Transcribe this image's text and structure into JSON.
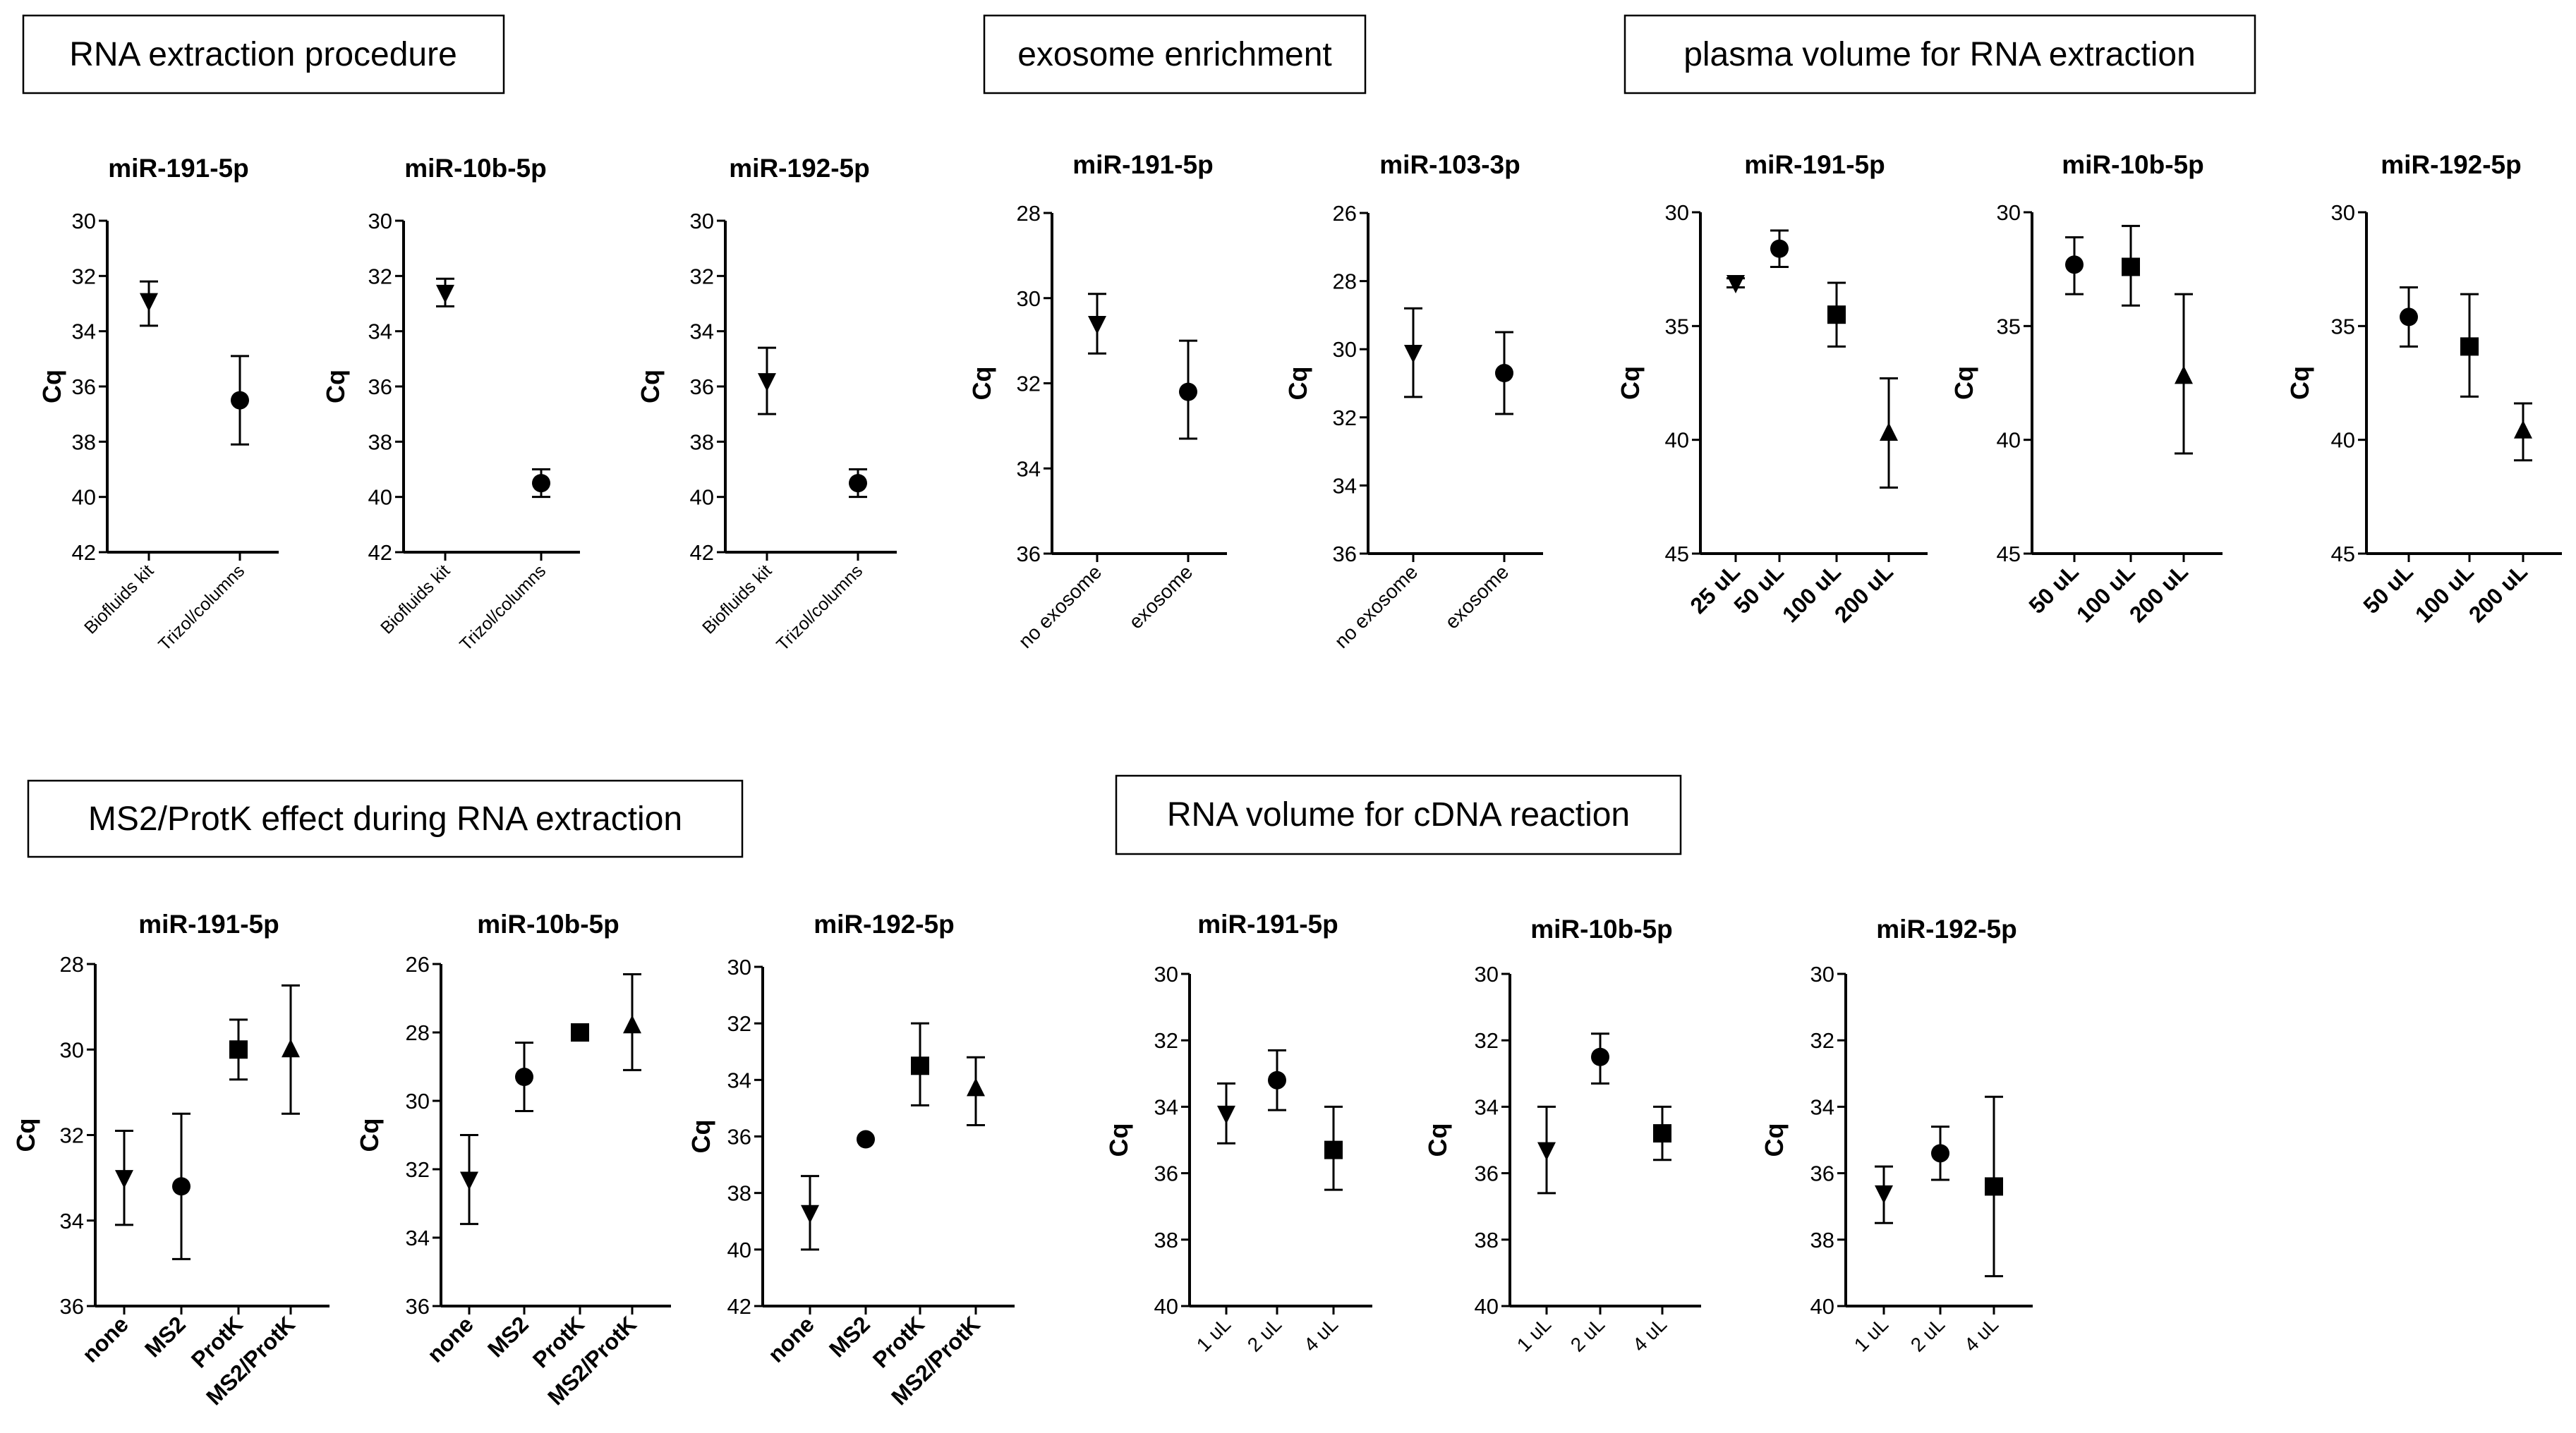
{
  "sections": [
    {
      "id": "rna-extraction-procedure",
      "title": "RNA extraction procedure"
    },
    {
      "id": "exosome-enrichment",
      "title": "exosome enrichment"
    },
    {
      "id": "plasma-volume",
      "title": "plasma volume for RNA extraction"
    },
    {
      "id": "ms2-protk",
      "title": "MS2/ProtK effect during RNA extraction"
    },
    {
      "id": "rna-volume-cdna",
      "title": "RNA volume for cDNA reaction"
    }
  ],
  "chart_data": [
    {
      "section": "RNA extraction procedure",
      "type": "scatter",
      "title": "miR-191-5p",
      "ylabel": "Cq",
      "ylim": [
        30,
        42
      ],
      "yticks": [
        30,
        32,
        34,
        36,
        38,
        40,
        42
      ],
      "y_inverted": true,
      "categories": [
        "Biofluids kit",
        "Trizol/columns"
      ],
      "points": [
        {
          "category": "Biofluids kit",
          "y": 32.9,
          "err_low": 32.2,
          "err_high": 33.8,
          "marker": "triangle-down"
        },
        {
          "category": "Trizol/columns",
          "y": 36.5,
          "err_low": 34.9,
          "err_high": 38.1,
          "marker": "circle"
        }
      ]
    },
    {
      "section": "RNA extraction procedure",
      "type": "scatter",
      "title": "miR-10b-5p",
      "ylabel": "Cq",
      "ylim": [
        30,
        42
      ],
      "yticks": [
        30,
        32,
        34,
        36,
        38,
        40,
        42
      ],
      "y_inverted": true,
      "categories": [
        "Biofluids kit",
        "Trizol/columns"
      ],
      "points": [
        {
          "category": "Biofluids kit",
          "y": 32.6,
          "err_low": 32.1,
          "err_high": 33.1,
          "marker": "triangle-down"
        },
        {
          "category": "Trizol/columns",
          "y": 39.5,
          "err_low": 39.0,
          "err_high": 40.0,
          "marker": "circle"
        }
      ]
    },
    {
      "section": "RNA extraction procedure",
      "type": "scatter",
      "title": "miR-192-5p",
      "ylabel": "Cq",
      "ylim": [
        30,
        42
      ],
      "yticks": [
        30,
        32,
        34,
        36,
        38,
        40,
        42
      ],
      "y_inverted": true,
      "categories": [
        "Biofluids kit",
        "Trizol/columns"
      ],
      "points": [
        {
          "category": "Biofluids kit",
          "y": 35.8,
          "err_low": 34.6,
          "err_high": 37.0,
          "marker": "triangle-down"
        },
        {
          "category": "Trizol/columns",
          "y": 39.5,
          "err_low": 39.0,
          "err_high": 40.0,
          "marker": "circle"
        }
      ]
    },
    {
      "section": "exosome enrichment",
      "type": "scatter",
      "title": "miR-191-5p",
      "ylabel": "Cq",
      "ylim": [
        28,
        36
      ],
      "yticks": [
        28,
        30,
        32,
        34,
        36
      ],
      "y_inverted": true,
      "categories": [
        "no exosome",
        "exosome"
      ],
      "points": [
        {
          "category": "no exosome",
          "y": 30.6,
          "err_low": 29.9,
          "err_high": 31.3,
          "marker": "triangle-down"
        },
        {
          "category": "exosome",
          "y": 32.2,
          "err_low": 31.0,
          "err_high": 33.3,
          "marker": "circle"
        }
      ]
    },
    {
      "section": "exosome enrichment",
      "type": "scatter",
      "title": "miR-103-3p",
      "ylabel": "Cq",
      "ylim": [
        26,
        36
      ],
      "yticks": [
        26,
        28,
        30,
        32,
        34,
        36
      ],
      "y_inverted": true,
      "categories": [
        "no exosome",
        "exosome"
      ],
      "points": [
        {
          "category": "no exosome",
          "y": 30.1,
          "err_low": 28.8,
          "err_high": 31.4,
          "marker": "triangle-down"
        },
        {
          "category": "exosome",
          "y": 30.7,
          "err_low": 29.5,
          "err_high": 31.9,
          "marker": "circle"
        }
      ]
    },
    {
      "section": "plasma volume for RNA extraction",
      "type": "scatter",
      "title": "miR-191-5p",
      "ylabel": "Cq",
      "ylim": [
        30,
        45
      ],
      "yticks": [
        30,
        35,
        40,
        45
      ],
      "y_inverted": true,
      "categories": [
        "25 uL",
        "50 uL",
        "100 uL",
        "200 uL"
      ],
      "points": [
        {
          "category": "25 uL",
          "y": 33.1,
          "err_low": 32.9,
          "err_high": 33.3,
          "marker": "triangle-down"
        },
        {
          "category": "50 uL",
          "y": 31.6,
          "err_low": 30.8,
          "err_high": 32.4,
          "marker": "circle"
        },
        {
          "category": "100 uL",
          "y": 34.5,
          "err_low": 33.1,
          "err_high": 35.9,
          "marker": "square"
        },
        {
          "category": "200 uL",
          "y": 39.7,
          "err_low": 37.3,
          "err_high": 42.1,
          "marker": "triangle-up"
        }
      ]
    },
    {
      "section": "plasma volume for RNA extraction",
      "type": "scatter",
      "title": "miR-10b-5p",
      "ylabel": "Cq",
      "ylim": [
        30,
        45
      ],
      "yticks": [
        30,
        35,
        40,
        45
      ],
      "y_inverted": true,
      "categories": [
        "50 uL",
        "100 uL",
        "200 uL"
      ],
      "points": [
        {
          "category": "50 uL",
          "y": 32.3,
          "err_low": 31.1,
          "err_high": 33.6,
          "marker": "circle"
        },
        {
          "category": "100 uL",
          "y": 32.4,
          "err_low": 30.6,
          "err_high": 34.1,
          "marker": "square"
        },
        {
          "category": "200 uL",
          "y": 37.2,
          "err_low": 33.6,
          "err_high": 40.6,
          "marker": "triangle-up"
        }
      ]
    },
    {
      "section": "plasma volume for RNA extraction",
      "type": "scatter",
      "title": "miR-192-5p",
      "ylabel": "Cq",
      "ylim": [
        30,
        45
      ],
      "yticks": [
        30,
        35,
        40,
        45
      ],
      "y_inverted": true,
      "categories": [
        "50 uL",
        "100 uL",
        "200 uL"
      ],
      "points": [
        {
          "category": "50 uL",
          "y": 34.6,
          "err_low": 33.3,
          "err_high": 35.9,
          "marker": "circle"
        },
        {
          "category": "100 uL",
          "y": 35.9,
          "err_low": 33.6,
          "err_high": 38.1,
          "marker": "square"
        },
        {
          "category": "200 uL",
          "y": 39.6,
          "err_low": 38.4,
          "err_high": 40.9,
          "marker": "triangle-up"
        }
      ]
    },
    {
      "section": "MS2/ProtK effect during RNA extraction",
      "type": "scatter",
      "title": "miR-191-5p",
      "ylabel": "Cq",
      "ylim": [
        28,
        36
      ],
      "yticks": [
        28,
        30,
        32,
        34,
        36
      ],
      "y_inverted": true,
      "categories": [
        "none",
        "MS2",
        "ProtK",
        "MS2/ProtK"
      ],
      "points": [
        {
          "category": "none",
          "y": 33.0,
          "err_low": 31.9,
          "err_high": 34.1,
          "marker": "triangle-down"
        },
        {
          "category": "MS2",
          "y": 33.2,
          "err_low": 31.5,
          "err_high": 34.9,
          "marker": "circle"
        },
        {
          "category": "ProtK",
          "y": 30.0,
          "err_low": 29.3,
          "err_high": 30.7,
          "marker": "square"
        },
        {
          "category": "MS2/ProtK",
          "y": 30.0,
          "err_low": 28.5,
          "err_high": 31.5,
          "marker": "triangle-up"
        }
      ]
    },
    {
      "section": "MS2/ProtK effect during RNA extraction",
      "type": "scatter",
      "title": "miR-10b-5p",
      "ylabel": "Cq",
      "ylim": [
        26,
        36
      ],
      "yticks": [
        26,
        28,
        30,
        32,
        34,
        36
      ],
      "y_inverted": true,
      "categories": [
        "none",
        "MS2",
        "ProtK",
        "MS2/ProtK"
      ],
      "points": [
        {
          "category": "none",
          "y": 32.3,
          "err_low": 31.0,
          "err_high": 33.6,
          "marker": "triangle-down"
        },
        {
          "category": "MS2",
          "y": 29.3,
          "err_low": 28.3,
          "err_high": 30.3,
          "marker": "circle"
        },
        {
          "category": "ProtK",
          "y": 28.0,
          "err_low": 28.0,
          "err_high": 28.0,
          "marker": "square"
        },
        {
          "category": "MS2/ProtK",
          "y": 27.8,
          "err_low": 26.3,
          "err_high": 29.1,
          "marker": "triangle-up"
        }
      ]
    },
    {
      "section": "MS2/ProtK effect during RNA extraction",
      "type": "scatter",
      "title": "miR-192-5p",
      "ylabel": "Cq",
      "ylim": [
        30,
        42
      ],
      "yticks": [
        30,
        32,
        34,
        36,
        38,
        40,
        42
      ],
      "y_inverted": true,
      "categories": [
        "none",
        "MS2",
        "ProtK",
        "MS2/ProtK"
      ],
      "points": [
        {
          "category": "none",
          "y": 38.7,
          "err_low": 37.4,
          "err_high": 40.0,
          "marker": "triangle-down"
        },
        {
          "category": "MS2",
          "y": 36.1,
          "err_low": 36.1,
          "err_high": 36.1,
          "marker": "circle"
        },
        {
          "category": "ProtK",
          "y": 33.5,
          "err_low": 32.0,
          "err_high": 34.9,
          "marker": "square"
        },
        {
          "category": "MS2/ProtK",
          "y": 34.3,
          "err_low": 33.2,
          "err_high": 35.6,
          "marker": "triangle-up"
        }
      ]
    },
    {
      "section": "RNA volume for cDNA reaction",
      "type": "scatter",
      "title": "miR-191-5p",
      "ylabel": "Cq",
      "ylim": [
        30,
        40
      ],
      "yticks": [
        30,
        32,
        34,
        36,
        38,
        40
      ],
      "y_inverted": true,
      "categories": [
        "1 uL",
        "2 uL",
        "4 uL"
      ],
      "points": [
        {
          "category": "1 uL",
          "y": 34.2,
          "err_low": 33.3,
          "err_high": 35.1,
          "marker": "triangle-down"
        },
        {
          "category": "2 uL",
          "y": 33.2,
          "err_low": 32.3,
          "err_high": 34.1,
          "marker": "circle"
        },
        {
          "category": "4 uL",
          "y": 35.3,
          "err_low": 34.0,
          "err_high": 36.5,
          "marker": "square"
        }
      ]
    },
    {
      "section": "RNA volume for cDNA reaction",
      "type": "scatter",
      "title": "miR-10b-5p",
      "ylabel": "Cq",
      "ylim": [
        30,
        40
      ],
      "yticks": [
        30,
        32,
        34,
        36,
        38,
        40
      ],
      "y_inverted": true,
      "categories": [
        "1 uL",
        "2 uL",
        "4 uL"
      ],
      "points": [
        {
          "category": "1 uL",
          "y": 35.3,
          "err_low": 34.0,
          "err_high": 36.6,
          "marker": "triangle-down"
        },
        {
          "category": "2 uL",
          "y": 32.5,
          "err_low": 31.8,
          "err_high": 33.3,
          "marker": "circle"
        },
        {
          "category": "4 uL",
          "y": 34.8,
          "err_low": 34.0,
          "err_high": 35.6,
          "marker": "square"
        }
      ]
    },
    {
      "section": "RNA volume for cDNA reaction",
      "type": "scatter",
      "title": "miR-192-5p",
      "ylabel": "Cq",
      "ylim": [
        30,
        40
      ],
      "yticks": [
        30,
        32,
        34,
        36,
        38,
        40
      ],
      "y_inverted": true,
      "categories": [
        "1 uL",
        "2 uL",
        "4 uL"
      ],
      "points": [
        {
          "category": "1 uL",
          "y": 36.6,
          "err_low": 35.8,
          "err_high": 37.5,
          "marker": "triangle-down"
        },
        {
          "category": "2 uL",
          "y": 35.4,
          "err_low": 34.6,
          "err_high": 36.2,
          "marker": "circle"
        },
        {
          "category": "4 uL",
          "y": 36.4,
          "err_low": 33.7,
          "err_high": 39.1,
          "marker": "square"
        }
      ]
    }
  ]
}
